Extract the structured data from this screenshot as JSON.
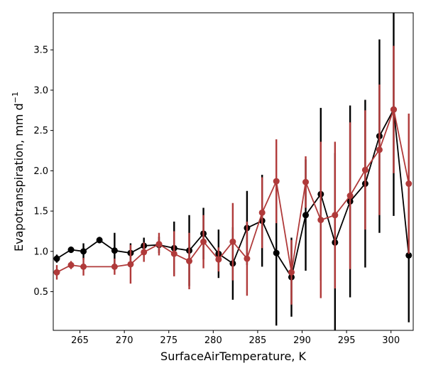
{
  "chart_data": {
    "type": "line",
    "xlabel": "SurfaceAirTemperature,  K",
    "ylabel_main": "Evapotranspiration,  mm d",
    "ylabel_sup": "−1",
    "xlim": [
      262,
      302.5
    ],
    "ylim": [
      0.02,
      3.96
    ],
    "xticks": [
      265,
      270,
      275,
      280,
      285,
      290,
      295,
      300
    ],
    "yticks": [
      0.5,
      1.0,
      1.5,
      2.0,
      2.5,
      3.0,
      3.5
    ],
    "grid": false,
    "legend": "none",
    "series": [
      {
        "color": "#000000",
        "points": [
          {
            "x": 262.4,
            "y": 0.91,
            "err": 0.05
          },
          {
            "x": 264.0,
            "y": 1.02,
            "err": 0.04
          },
          {
            "x": 265.4,
            "y": 1.0,
            "err": 0.1
          },
          {
            "x": 267.2,
            "y": 1.14,
            "err": 0.04
          },
          {
            "x": 268.9,
            "y": 1.01,
            "err": 0.22
          },
          {
            "x": 270.7,
            "y": 0.98,
            "err": 0.12
          },
          {
            "x": 272.2,
            "y": 1.07,
            "err": 0.1
          },
          {
            "x": 273.9,
            "y": 1.08,
            "err": 0.1
          },
          {
            "x": 275.6,
            "y": 1.04,
            "err": 0.33
          },
          {
            "x": 277.3,
            "y": 1.01,
            "err": 0.44
          },
          {
            "x": 278.9,
            "y": 1.22,
            "err": 0.32
          },
          {
            "x": 280.6,
            "y": 0.97,
            "err": 0.3
          },
          {
            "x": 282.2,
            "y": 0.85,
            "err": 0.45
          },
          {
            "x": 283.8,
            "y": 1.29,
            "err": 0.46
          },
          {
            "x": 285.5,
            "y": 1.38,
            "err": 0.57
          },
          {
            "x": 287.1,
            "y": 0.98,
            "err": 0.9
          },
          {
            "x": 288.8,
            "y": 0.68,
            "err": 0.49
          },
          {
            "x": 290.4,
            "y": 1.45,
            "err": 0.69
          },
          {
            "x": 292.1,
            "y": 1.71,
            "err": 1.07
          },
          {
            "x": 293.7,
            "y": 1.11,
            "err": 1.11
          },
          {
            "x": 295.4,
            "y": 1.62,
            "err": 1.19
          },
          {
            "x": 297.1,
            "y": 1.84,
            "err": 1.04
          },
          {
            "x": 298.7,
            "y": 2.43,
            "err": 1.2
          },
          {
            "x": 300.3,
            "y": 2.76,
            "err": 1.32
          },
          {
            "x": 302.0,
            "y": 0.95,
            "err": 0.83
          }
        ]
      },
      {
        "color": "#b03a3a",
        "points": [
          {
            "x": 262.4,
            "y": 0.74,
            "err": 0.09
          },
          {
            "x": 264.0,
            "y": 0.83,
            "err": 0.05
          },
          {
            "x": 265.4,
            "y": 0.81,
            "err": 0.11
          },
          {
            "x": 268.9,
            "y": 0.81,
            "err": 0.1
          },
          {
            "x": 270.7,
            "y": 0.84,
            "err": 0.24
          },
          {
            "x": 272.2,
            "y": 0.99,
            "err": 0.12
          },
          {
            "x": 273.9,
            "y": 1.09,
            "err": 0.14
          },
          {
            "x": 275.6,
            "y": 0.97,
            "err": 0.28
          },
          {
            "x": 277.3,
            "y": 0.88,
            "err": 0.35
          },
          {
            "x": 278.9,
            "y": 1.12,
            "err": 0.33
          },
          {
            "x": 280.6,
            "y": 0.9,
            "err": 0.15
          },
          {
            "x": 282.2,
            "y": 1.12,
            "err": 0.48
          },
          {
            "x": 283.8,
            "y": 0.91,
            "err": 0.46
          },
          {
            "x": 285.5,
            "y": 1.48,
            "err": 0.44
          },
          {
            "x": 287.1,
            "y": 1.87,
            "err": 0.52
          },
          {
            "x": 288.8,
            "y": 0.74,
            "err": 0.4
          },
          {
            "x": 290.4,
            "y": 1.86,
            "err": 0.32
          },
          {
            "x": 292.1,
            "y": 1.39,
            "err": 0.97
          },
          {
            "x": 293.7,
            "y": 1.45,
            "err": 0.91
          },
          {
            "x": 295.4,
            "y": 1.69,
            "err": 0.91
          },
          {
            "x": 297.1,
            "y": 2.01,
            "err": 0.74
          },
          {
            "x": 298.7,
            "y": 2.26,
            "err": 0.81
          },
          {
            "x": 300.3,
            "y": 2.76,
            "err": 0.79
          },
          {
            "x": 302.0,
            "y": 1.84,
            "err": 0.87
          }
        ]
      }
    ]
  }
}
